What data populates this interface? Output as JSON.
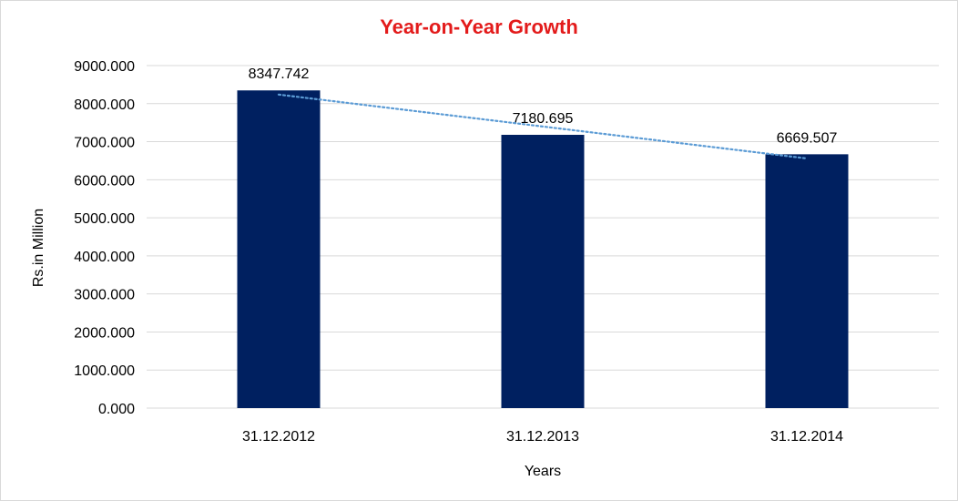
{
  "chart_data": {
    "type": "bar",
    "title": "Year-on-Year Growth",
    "xlabel": "Years",
    "ylabel": "Rs.in Million",
    "categories": [
      "31.12.2012",
      "31.12.2013",
      "31.12.2014"
    ],
    "values": [
      8347.742,
      7180.695,
      6669.507
    ],
    "data_labels": [
      "8347.742",
      "7180.695",
      "6669.507"
    ],
    "ylim": [
      0,
      9000
    ],
    "yticks": [
      0,
      1000,
      2000,
      3000,
      4000,
      5000,
      6000,
      7000,
      8000,
      9000
    ],
    "ytick_labels": [
      "0.000",
      "1000.000",
      "2000.000",
      "3000.000",
      "4000.000",
      "5000.000",
      "6000.000",
      "7000.000",
      "8000.000",
      "9000.000"
    ],
    "grid": true,
    "legend": "none",
    "trendline": {
      "type": "linear",
      "style": "dotted"
    },
    "colors": {
      "bar": "#002060",
      "trendline": "#5b9bd5",
      "gridline": "#d9d9d9",
      "title": "#e31b1b"
    }
  }
}
